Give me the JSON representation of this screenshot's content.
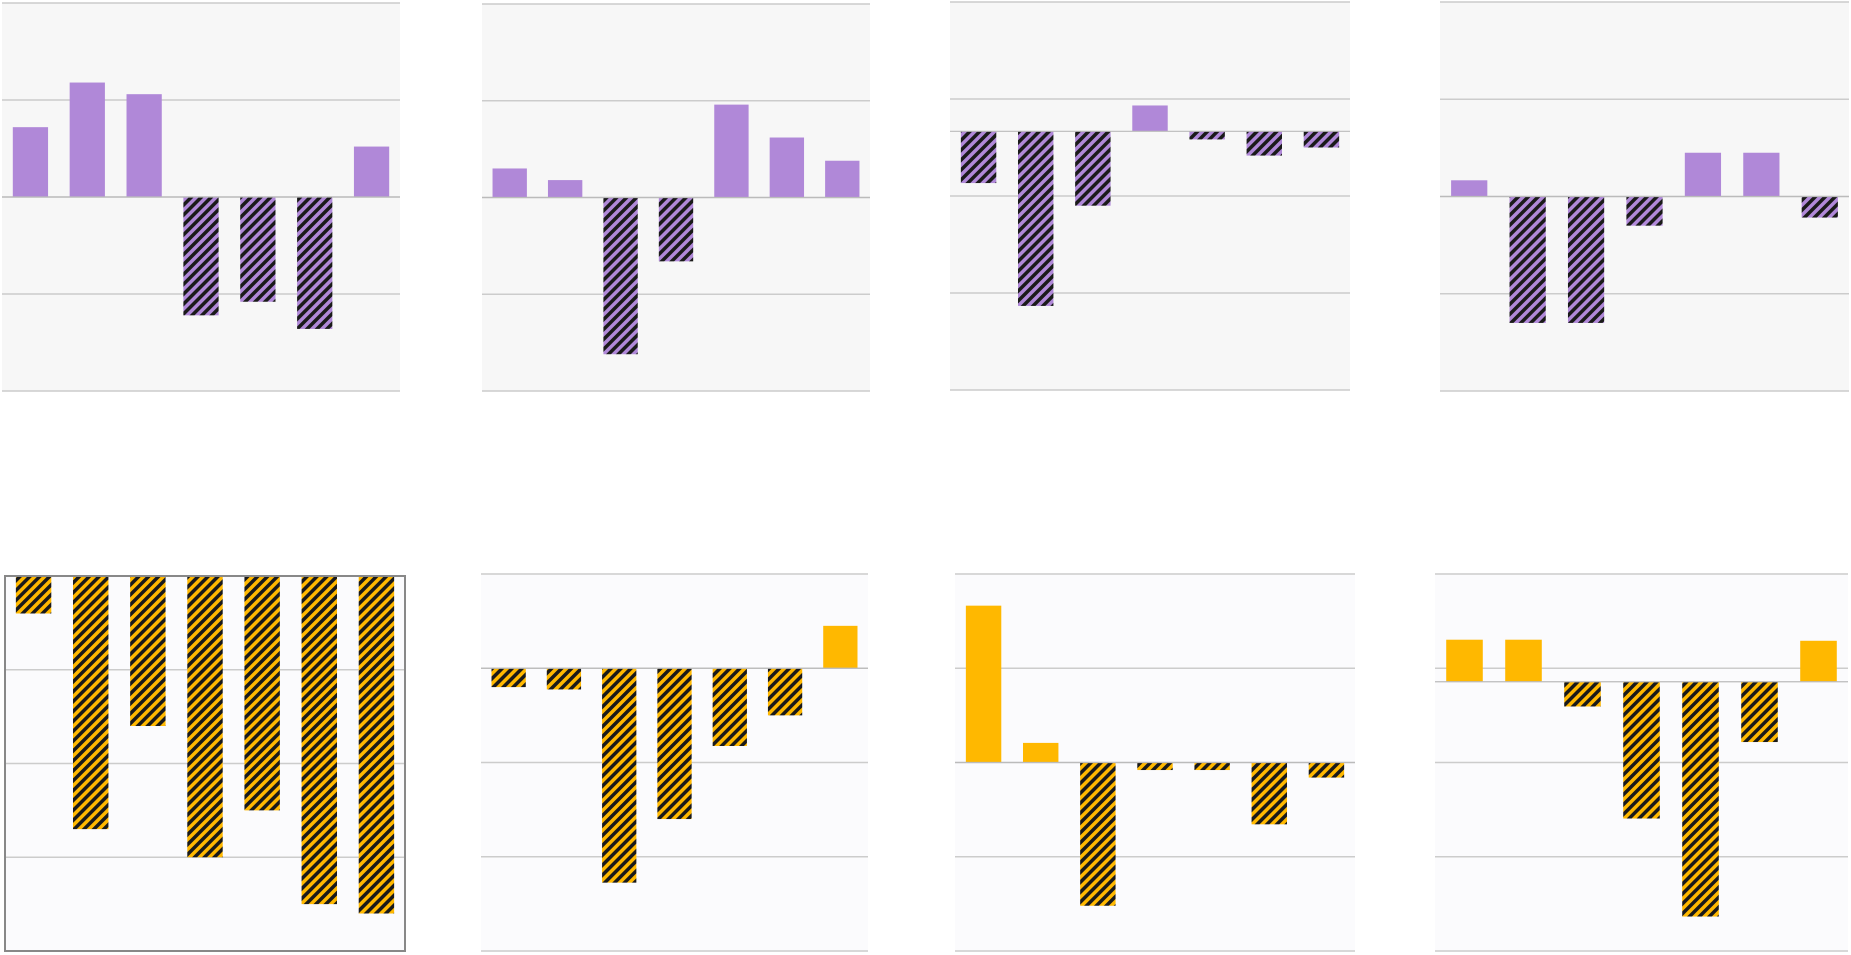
{
  "palette": {
    "purple": "#b088d8",
    "amber": "#ffb800",
    "dark_hatch": "#1a1a1a",
    "panel_bg_top": "#f7f7f7",
    "panel_bg_bottom": "#fbfbfd",
    "grid": "#cccccc",
    "frame": "#888888"
  },
  "chart_data": [
    {
      "type": "bar",
      "color": "purple",
      "grid": true,
      "zero_line": true,
      "values": [
        3.6,
        5.9,
        5.3,
        -6.1,
        -5.4,
        -6.8,
        2.6
      ],
      "ylim": [
        -10,
        10
      ]
    },
    {
      "type": "bar",
      "color": "purple",
      "grid": true,
      "zero_line": true,
      "values": [
        1.5,
        0.9,
        -8.1,
        -3.3,
        4.8,
        3.1,
        1.9
      ],
      "ylim": [
        -10,
        10
      ]
    },
    {
      "type": "bar",
      "color": "purple",
      "grid": true,
      "zero_line": true,
      "values": [
        -3.2,
        -10.8,
        -4.6,
        1.6,
        -0.5,
        -1.5,
        -1.0
      ],
      "ylim": [
        -16,
        8
      ]
    },
    {
      "type": "bar",
      "color": "purple",
      "grid": true,
      "zero_line": true,
      "values": [
        1.0,
        -7.8,
        -7.8,
        -1.8,
        2.7,
        2.7,
        -1.3
      ],
      "ylim": [
        -12,
        12
      ]
    },
    {
      "type": "bar",
      "color": "amber",
      "grid": true,
      "zero_line": false,
      "frame": true,
      "values": [
        -0.4,
        -2.7,
        -1.6,
        -3.0,
        -2.5,
        -3.5,
        -3.6
      ],
      "ylim": [
        -4,
        0
      ]
    },
    {
      "type": "bar",
      "color": "amber",
      "grid": true,
      "zero_line": true,
      "values": [
        -0.8,
        -0.9,
        -9.1,
        -6.4,
        -3.3,
        -2.0,
        1.8
      ],
      "ylim": [
        -12,
        4
      ]
    },
    {
      "type": "bar",
      "color": "amber",
      "grid": true,
      "zero_line": true,
      "values": [
        10.4,
        1.3,
        -9.5,
        -0.5,
        -0.5,
        -4.1,
        -1.0
      ],
      "ylim": [
        -12.5,
        12.5
      ]
    },
    {
      "type": "bar",
      "color": "amber",
      "grid": true,
      "zero_line": true,
      "values": [
        3.9,
        3.9,
        -2.3,
        -12.7,
        -21.8,
        -5.6,
        3.8
      ],
      "ylim": [
        -25,
        10
      ]
    }
  ]
}
